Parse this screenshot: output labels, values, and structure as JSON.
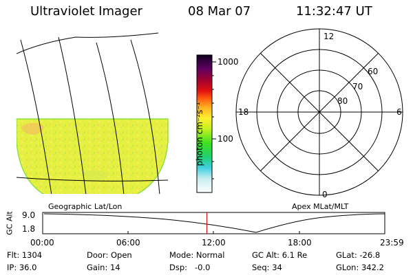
{
  "header": {
    "title": "Ultraviolet Imager",
    "date": "08 Mar 07",
    "time": "11:32:47 UT"
  },
  "colorbar": {
    "label": "photon cm⁻²s⁻¹",
    "tick_high": "1000",
    "tick_low": "100"
  },
  "panels": {
    "left_caption": "Geographic Lat/Lon",
    "right_caption": "Apex MLat/MLT"
  },
  "polar": {
    "mlt_labels": {
      "top": "12",
      "bottom": "0",
      "left": "18",
      "right": "6"
    },
    "lat_labels": [
      "60",
      "70",
      "80"
    ]
  },
  "timeline": {
    "ylabel": "GC Alt",
    "y_top": "9.0",
    "y_bottom": "1.8",
    "ticks": [
      "00:00",
      "06:00",
      "12:00",
      "18:00",
      "23:59"
    ],
    "marker_fraction": 0.48,
    "marker_color": "#cc0000"
  },
  "info": {
    "flt": "Flt: 1304",
    "ip": "IP: 36.0",
    "door": "Door: Open",
    "gain": "Gain: 14",
    "mode": "Mode: Normal",
    "dsp": "Dsp:   -0.0",
    "gcalt": "GC Alt: 6.1 Re",
    "seq": "Seq: 34",
    "glat": "GLat: -26.8",
    "glon": "GLon: 342.2"
  }
}
